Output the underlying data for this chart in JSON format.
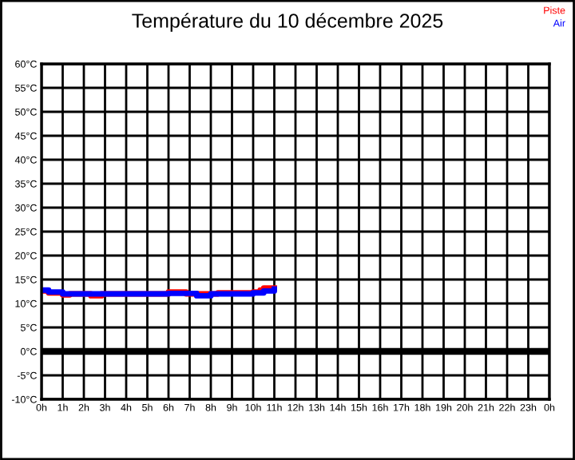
{
  "chart_data": {
    "type": "step",
    "title": "Température du 10 décembre 2025",
    "legend": "top right",
    "grid": true,
    "xlim": [
      "2025-12-10T00:00",
      "2025-12-11T00:00"
    ],
    "xticks": [
      {
        "value": "2025-12-10T00:00",
        "label": "0h"
      },
      {
        "value": "2025-12-10T01:00",
        "label": "1h"
      },
      {
        "value": "2025-12-10T02:00",
        "label": "2h"
      },
      {
        "value": "2025-12-10T03:00",
        "label": "3h"
      },
      {
        "value": "2025-12-10T04:00",
        "label": "4h"
      },
      {
        "value": "2025-12-10T05:00",
        "label": "5h"
      },
      {
        "value": "2025-12-10T06:00",
        "label": "6h"
      },
      {
        "value": "2025-12-10T07:00",
        "label": "7h"
      },
      {
        "value": "2025-12-10T08:00",
        "label": "8h"
      },
      {
        "value": "2025-12-10T09:00",
        "label": "9h"
      },
      {
        "value": "2025-12-10T10:00",
        "label": "10h"
      },
      {
        "value": "2025-12-10T11:00",
        "label": "11h"
      },
      {
        "value": "2025-12-10T12:00",
        "label": "12h"
      },
      {
        "value": "2025-12-10T13:00",
        "label": "13h"
      },
      {
        "value": "2025-12-10T14:00",
        "label": "14h"
      },
      {
        "value": "2025-12-10T15:00",
        "label": "15h"
      },
      {
        "value": "2025-12-10T16:00",
        "label": "16h"
      },
      {
        "value": "2025-12-10T17:00",
        "label": "17h"
      },
      {
        "value": "2025-12-10T18:00",
        "label": "18h"
      },
      {
        "value": "2025-12-10T19:00",
        "label": "19h"
      },
      {
        "value": "2025-12-10T20:00",
        "label": "20h"
      },
      {
        "value": "2025-12-10T21:00",
        "label": "21h"
      },
      {
        "value": "2025-12-10T22:00",
        "label": "22h"
      },
      {
        "value": "2025-12-10T23:00",
        "label": "23h"
      },
      {
        "value": "2025-12-11T00:00",
        "label": "0h"
      }
    ],
    "ylim": [
      -10,
      60
    ],
    "yticks": [
      {
        "value": -10,
        "label": "-10°C"
      },
      {
        "value": -5,
        "label": "-5°C"
      },
      {
        "value": 0,
        "label": "0°C"
      },
      {
        "value": 5,
        "label": "5°C"
      },
      {
        "value": 10,
        "label": "10°C"
      },
      {
        "value": 15,
        "label": "15°C"
      },
      {
        "value": 20,
        "label": "20°C"
      },
      {
        "value": 25,
        "label": "25°C"
      },
      {
        "value": 30,
        "label": "30°C"
      },
      {
        "value": 35,
        "label": "35°C"
      },
      {
        "value": 40,
        "label": "40°C"
      },
      {
        "value": 45,
        "label": "45°C"
      },
      {
        "value": 50,
        "label": "50°C"
      },
      {
        "value": 55,
        "label": "55°C"
      },
      {
        "value": 60,
        "label": "60°C"
      }
    ],
    "ref_lines": [
      {
        "axis": "y",
        "value": 0,
        "color": "#000000"
      }
    ],
    "series": [
      {
        "name": "Piste",
        "color": "#ff0000",
        "x": [
          "2025-12-10T00:00",
          "2025-12-10T00:20",
          "2025-12-10T01:00",
          "2025-12-10T01:20",
          "2025-12-10T02:20",
          "2025-12-10T02:50",
          "2025-12-10T06:00",
          "2025-12-10T06:50",
          "2025-12-10T08:00",
          "2025-12-10T08:20",
          "2025-12-10T10:00",
          "2025-12-10T10:20",
          "2025-12-10T10:30",
          "2025-12-10T11:00"
        ],
        "values": [
          12.6,
          12.2,
          11.8,
          12.0,
          11.6,
          12.0,
          12.4,
          12.0,
          12.0,
          12.2,
          12.4,
          12.8,
          13.2,
          13.2
        ]
      },
      {
        "name": "Air",
        "color": "#0000ff",
        "x": [
          "2025-12-10T00:00",
          "2025-12-10T00:20",
          "2025-12-10T01:00",
          "2025-12-10T06:00",
          "2025-12-10T07:20",
          "2025-12-10T08:00",
          "2025-12-10T10:00",
          "2025-12-10T10:30",
          "2025-12-10T11:00"
        ],
        "values": [
          12.8,
          12.4,
          12.0,
          12.1,
          11.6,
          12.0,
          12.2,
          12.6,
          13.0
        ]
      }
    ]
  }
}
